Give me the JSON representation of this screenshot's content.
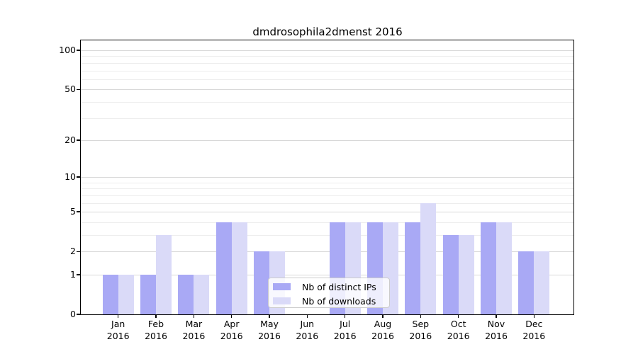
{
  "chart_data": {
    "type": "bar",
    "title": "dmdrosophila2dmenst 2016",
    "categories": [
      "Jan",
      "Feb",
      "Mar",
      "Apr",
      "May",
      "Jun",
      "Jul",
      "Aug",
      "Sep",
      "Oct",
      "Nov",
      "Dec"
    ],
    "year": "2016",
    "series": [
      {
        "name": "Nb of distinct IPs",
        "color": "#a9a9f5",
        "values": [
          1,
          1,
          1,
          4,
          2,
          0,
          4,
          4,
          4,
          3,
          4,
          2
        ]
      },
      {
        "name": "Nb of downloads",
        "color": "#dadaf8",
        "values": [
          1,
          3,
          1,
          4,
          2,
          0,
          4,
          4,
          6,
          3,
          4,
          2
        ]
      }
    ],
    "xlabel": "",
    "ylabel": "",
    "yscale": "log1p",
    "yticks": [
      100,
      50,
      20,
      10,
      5,
      2,
      1,
      0
    ],
    "minor_gridlines": [
      3,
      4,
      6,
      7,
      8,
      9,
      30,
      40,
      60,
      70,
      80,
      90
    ],
    "ylim": [
      0,
      118
    ],
    "grid": true,
    "legend_position": "lower center"
  },
  "colors": {
    "background": "#ffffff",
    "axis": "#000000",
    "major_grid": "#d8d8d8",
    "minor_grid": "#ededed",
    "legend_border": "#cccccc"
  }
}
